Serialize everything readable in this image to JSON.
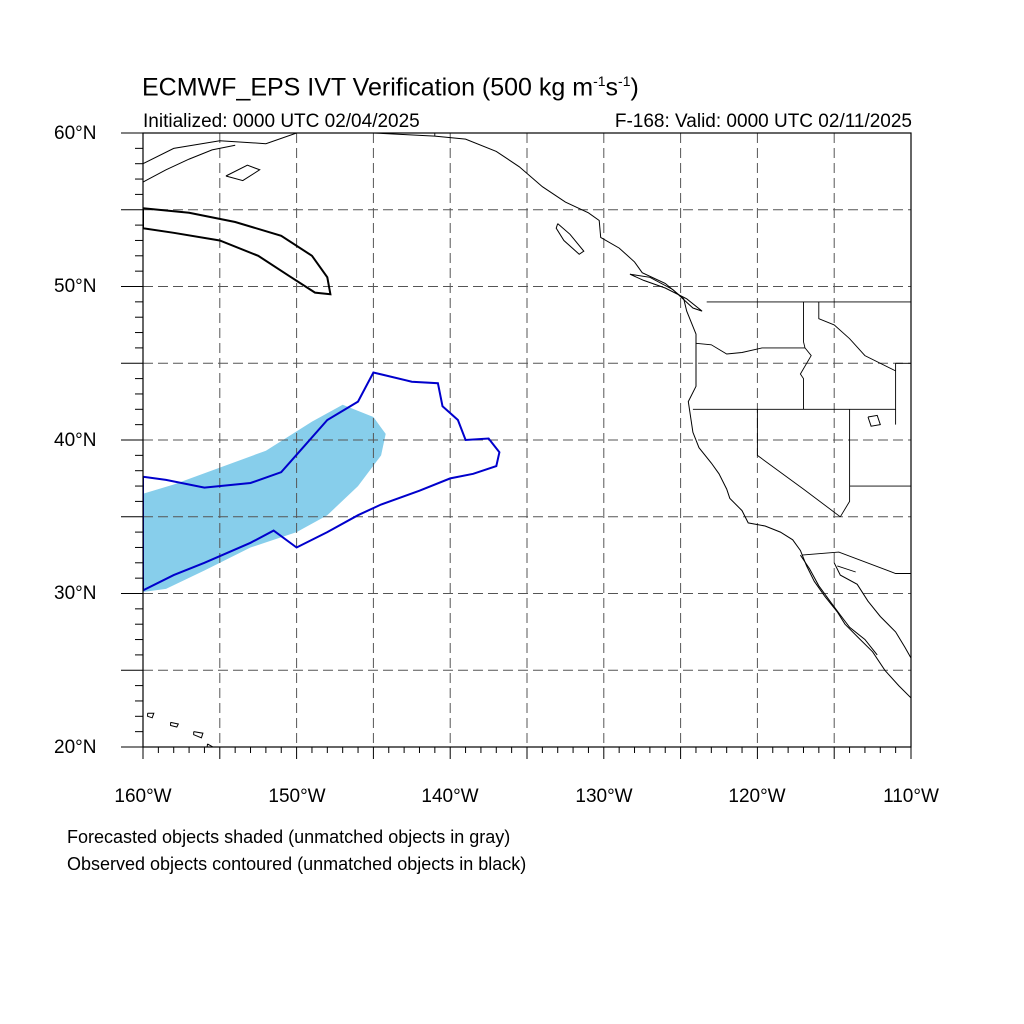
{
  "title": {
    "prefix": "ECMWF_EPS IVT Verification (500 kg m",
    "exp1": "-1",
    "mid": "s",
    "exp2": "-1",
    "suffix": ")"
  },
  "initialized": "Initialized: 0000 UTC 02/04/2025",
  "valid": "F-168: Valid: 0000 UTC 02/11/2025",
  "lat_labels": [
    "60°N",
    "50°N",
    "40°N",
    "30°N",
    "20°N"
  ],
  "lon_labels": [
    "160°W",
    "150°W",
    "140°W",
    "130°W",
    "120°W",
    "110°W"
  ],
  "notes": {
    "line1": "Forecasted objects shaded (unmatched objects in gray)",
    "line2": "Observed objects contoured (unmatched objects in black)"
  },
  "map": {
    "lon_range": [
      -160,
      -110
    ],
    "lat_range": [
      20,
      60
    ],
    "grid_lons": [
      -155,
      -150,
      -145,
      -140,
      -135,
      -130,
      -125,
      -120,
      -115
    ],
    "grid_lats": [
      25,
      30,
      35,
      40,
      45,
      50,
      55
    ],
    "colors": {
      "forecast_shade": "#87ceeb",
      "matched_observed_contour": "#0000cc",
      "unmatched_observed_contour": "#000000",
      "coast": "#000000"
    }
  },
  "objects": {
    "forecast_matched": [
      [
        -160,
        36.5
      ],
      [
        -158,
        37.1
      ],
      [
        -155,
        38.2
      ],
      [
        -152,
        39.3
      ],
      [
        -149,
        41.2
      ],
      [
        -147,
        42.3
      ],
      [
        -145,
        41.5
      ],
      [
        -144.2,
        40.4
      ],
      [
        -144.5,
        39
      ],
      [
        -146,
        37
      ],
      [
        -148,
        35.1
      ],
      [
        -150,
        34
      ],
      [
        -153,
        33
      ],
      [
        -156,
        31.5
      ],
      [
        -158.5,
        30.3
      ],
      [
        -160,
        30.1
      ]
    ],
    "observed_matched": [
      [
        -160,
        37.6
      ],
      [
        -158.5,
        37.4
      ],
      [
        -156,
        36.9
      ],
      [
        -153,
        37.2
      ],
      [
        -151,
        37.9
      ],
      [
        -149.5,
        39.6
      ],
      [
        -148,
        41.3
      ],
      [
        -146,
        42.5
      ],
      [
        -145,
        44.4
      ],
      [
        -142.5,
        43.8
      ],
      [
        -140.8,
        43.7
      ],
      [
        -140.5,
        42.2
      ],
      [
        -139.5,
        41.3
      ],
      [
        -139,
        40
      ],
      [
        -137.5,
        40.1
      ],
      [
        -136.8,
        39.2
      ],
      [
        -137,
        38.3
      ],
      [
        -138.5,
        37.8
      ],
      [
        -140,
        37.5
      ],
      [
        -142,
        36.7
      ],
      [
        -144.5,
        35.8
      ],
      [
        -146,
        35.1
      ],
      [
        -148,
        34
      ],
      [
        -150,
        33
      ],
      [
        -151.5,
        34.1
      ],
      [
        -153,
        33.3
      ],
      [
        -156,
        32
      ],
      [
        -158,
        31.2
      ],
      [
        -160,
        30.2
      ]
    ],
    "observed_unmatched": [
      [
        -160,
        55.1
      ],
      [
        -157,
        54.8
      ],
      [
        -154,
        54.2
      ],
      [
        -151,
        53.3
      ],
      [
        -149,
        52
      ],
      [
        -148,
        50.6
      ],
      [
        -147.8,
        49.5
      ],
      [
        -148.8,
        49.6
      ],
      [
        -150.5,
        50.7
      ],
      [
        -152.5,
        52
      ],
      [
        -155,
        53
      ],
      [
        -158,
        53.5
      ],
      [
        -160,
        53.8
      ]
    ]
  },
  "coast": {
    "north_america": [
      [
        -160,
        58
      ],
      [
        -158,
        59
      ],
      [
        -155,
        59.5
      ],
      [
        -152,
        59.3
      ],
      [
        -150,
        60
      ],
      [
        -148,
        60
      ],
      [
        -145,
        60
      ],
      [
        -141,
        59.8
      ],
      [
        -139,
        59.6
      ],
      [
        -137,
        58.8
      ],
      [
        -135.5,
        57.8
      ],
      [
        -134,
        56.5
      ],
      [
        -132.5,
        55.5
      ],
      [
        -131,
        54.8
      ],
      [
        -130.3,
        54.3
      ],
      [
        -130.2,
        53.2
      ],
      [
        -129,
        52.5
      ],
      [
        -128,
        51.6
      ],
      [
        -127.5,
        50.9
      ],
      [
        -126,
        50.2
      ],
      [
        -124.8,
        49.2
      ],
      [
        -124.6,
        48.4
      ],
      [
        -124,
        46.9
      ],
      [
        -124,
        45.5
      ],
      [
        -124,
        43.5
      ],
      [
        -124.5,
        42.5
      ],
      [
        -124.2,
        40.5
      ],
      [
        -123.8,
        39.5
      ],
      [
        -123,
        38.5
      ],
      [
        -122.5,
        37.8
      ],
      [
        -122,
        36.8
      ],
      [
        -121.8,
        36.2
      ],
      [
        -121,
        35.4
      ],
      [
        -120.6,
        34.6
      ],
      [
        -119.5,
        34.4
      ],
      [
        -118.5,
        34
      ],
      [
        -117.7,
        33.5
      ],
      [
        -117.2,
        32.8
      ],
      [
        -116.8,
        31.8
      ],
      [
        -116.3,
        30.8
      ],
      [
        -115.6,
        29.8
      ],
      [
        -114.8,
        28.8
      ],
      [
        -114.3,
        28
      ],
      [
        -113.5,
        27.2
      ],
      [
        -112.5,
        26.2
      ],
      [
        -111.7,
        25
      ],
      [
        -110.8,
        24
      ],
      [
        -110,
        23.2
      ]
    ],
    "gulf_california": [
      [
        -115,
        32
      ],
      [
        -114.6,
        31.2
      ],
      [
        -113.5,
        30.6
      ],
      [
        -112.8,
        29.5
      ],
      [
        -112,
        28.5
      ],
      [
        -111,
        27.5
      ],
      [
        -110.4,
        26.5
      ],
      [
        -110,
        25.8
      ]
    ],
    "west_baja_inner": [
      [
        -117.2,
        32.5
      ],
      [
        -116.6,
        31.6
      ],
      [
        -116,
        30.5
      ],
      [
        -115.2,
        29.4
      ],
      [
        -114.6,
        28.6
      ],
      [
        -114,
        27.8
      ],
      [
        -113,
        27
      ],
      [
        -112.2,
        26
      ]
    ],
    "alaska_peninsula": [
      [
        -160,
        56.8
      ],
      [
        -158.5,
        57.6
      ],
      [
        -157,
        58.3
      ],
      [
        -155.5,
        58.9
      ],
      [
        -154,
        59.2
      ]
    ],
    "kodiak": [
      [
        -154.6,
        57.2
      ],
      [
        -153.2,
        57.9
      ],
      [
        -152.4,
        57.6
      ],
      [
        -153.5,
        56.9
      ],
      [
        -154.6,
        57.2
      ]
    ],
    "vancouver_island": [
      [
        -128.3,
        50.8
      ],
      [
        -127,
        50.6
      ],
      [
        -125.5,
        49.8
      ],
      [
        -124.2,
        48.6
      ],
      [
        -123.6,
        48.4
      ],
      [
        -124.6,
        49.2
      ],
      [
        -126,
        49.9
      ],
      [
        -127.4,
        50.4
      ],
      [
        -128.3,
        50.8
      ]
    ],
    "haida_gwaii": [
      [
        -133,
        54.1
      ],
      [
        -132.2,
        53.4
      ],
      [
        -131.3,
        52.3
      ],
      [
        -131.6,
        52.1
      ],
      [
        -132.6,
        53
      ],
      [
        -133.1,
        53.8
      ],
      [
        -133,
        54.1
      ]
    ],
    "hawaii_big": [
      [
        -155.8,
        20.2
      ],
      [
        -155.1,
        19.8
      ],
      [
        -154.9,
        19.5
      ],
      [
        -155.5,
        19.0
      ],
      [
        -155.9,
        19.3
      ],
      [
        -155.8,
        20.2
      ]
    ],
    "hawaii_maui": [
      [
        -156.7,
        21
      ],
      [
        -156.1,
        20.9
      ],
      [
        -156.2,
        20.6
      ],
      [
        -156.7,
        20.8
      ],
      [
        -156.7,
        21
      ]
    ],
    "hawaii_oahu": [
      [
        -158.2,
        21.6
      ],
      [
        -157.7,
        21.5
      ],
      [
        -157.8,
        21.3
      ],
      [
        -158.2,
        21.4
      ],
      [
        -158.2,
        21.6
      ]
    ],
    "hawaii_kauai": [
      [
        -159.7,
        22.2
      ],
      [
        -159.3,
        22.2
      ],
      [
        -159.4,
        21.9
      ],
      [
        -159.7,
        22.0
      ],
      [
        -159.7,
        22.2
      ]
    ],
    "great_salt_lake": [
      [
        -112.8,
        41.5
      ],
      [
        -112.2,
        41.6
      ],
      [
        -112.0,
        41.0
      ],
      [
        -112.6,
        40.9
      ],
      [
        -112.8,
        41.5
      ]
    ]
  },
  "borders": {
    "canada_us": [
      [
        -123.3,
        49
      ],
      [
        -110,
        49
      ]
    ],
    "alaska_bc": [
      [
        -141,
        60
      ],
      [
        -141,
        59.8
      ]
    ],
    "wa_or": [
      [
        -124,
        46.3
      ],
      [
        -123,
        46.2
      ],
      [
        -122,
        45.6
      ],
      [
        -121,
        45.7
      ],
      [
        -119.7,
        46
      ],
      [
        -116.9,
        46
      ]
    ],
    "wa_id": [
      [
        -117,
        49
      ],
      [
        -117,
        46.4
      ],
      [
        -116.9,
        46
      ]
    ],
    "or_id": [
      [
        -116.9,
        46
      ],
      [
        -116.5,
        45.5
      ],
      [
        -117.2,
        44.3
      ],
      [
        -117,
        44
      ],
      [
        -117,
        42
      ]
    ],
    "or_ca_nv": [
      [
        -124.2,
        42
      ],
      [
        -111,
        42
      ]
    ],
    "id_mt": [
      [
        -116,
        49
      ],
      [
        -116,
        47.9
      ],
      [
        -115,
        47.5
      ],
      [
        -114,
        46.6
      ],
      [
        -113,
        45.5
      ],
      [
        -111,
        44.5
      ]
    ],
    "ca_nv": [
      [
        -120,
        42
      ],
      [
        -120,
        39
      ],
      [
        -117,
        36.8
      ],
      [
        -114.6,
        35
      ]
    ],
    "nv_az": [
      [
        -114.6,
        35
      ],
      [
        -114,
        36
      ],
      [
        -114,
        42
      ]
    ],
    "ut_az": [
      [
        -114,
        37
      ],
      [
        -110,
        37
      ]
    ],
    "us_mexico": [
      [
        -117.1,
        32.5
      ],
      [
        -114.7,
        32.7
      ],
      [
        -111,
        31.3
      ],
      [
        -110,
        31.3
      ]
    ],
    "wy_west": [
      [
        -111,
        45
      ],
      [
        -111,
        41
      ]
    ],
    "mt_wy": [
      [
        -111,
        45
      ],
      [
        -110,
        45
      ]
    ],
    "sonora_bc": [
      [
        -114.8,
        31.8
      ],
      [
        -113.6,
        31.4
      ]
    ]
  }
}
